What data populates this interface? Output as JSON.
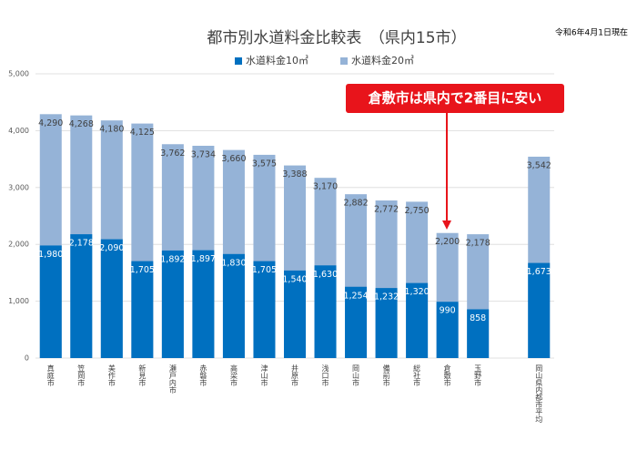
{
  "chart_data": {
    "type": "overlap-bar",
    "title": "都市別水道料金比較表　（県内15市）",
    "subtitle": "令和6年4月1日現在",
    "annotation": "倉敷市は県内で2番目に安い",
    "categories": [
      "真庭市",
      "笠岡市",
      "美作市",
      "新見市",
      "瀬戸内市",
      "赤磐市",
      "高梁市",
      "津山市",
      "井原市",
      "浅口市",
      "岡山市",
      "備前市",
      "総社市",
      "倉敷市",
      "玉野市",
      null,
      "岡山県内都市平均"
    ],
    "series": [
      {
        "name": "水道料金10㎥",
        "color": "#0070c0",
        "values": [
          1980,
          2178,
          2090,
          1705,
          1892,
          1897,
          1830,
          1705,
          1540,
          1630,
          1254,
          1232,
          1320,
          990,
          858,
          null,
          1673
        ],
        "value_labels": [
          "1,980",
          "2,178",
          "2,090",
          "1,705",
          "1,892",
          "1,897",
          "1,830",
          "1,705",
          "1,540",
          "1,630",
          "1,254",
          "1,232",
          "1,320",
          "990",
          "858",
          null,
          "1,673"
        ]
      },
      {
        "name": "水道料金20㎥",
        "color": "#95b3d7",
        "values": [
          4290,
          4268,
          4180,
          4125,
          3762,
          3734,
          3660,
          3575,
          3388,
          3170,
          2882,
          2772,
          2750,
          2200,
          2178,
          null,
          3542
        ],
        "value_labels": [
          "4,290",
          "4,268",
          "4,180",
          "4,125",
          "3,762",
          "3,734",
          "3,660",
          "3,575",
          "3,388",
          "3,170",
          "2,882",
          "2,772",
          "2,750",
          "2,200",
          "2,178",
          null,
          "3,542"
        ]
      }
    ],
    "ylim": [
      0,
      5000
    ],
    "yticks": [
      0,
      {
        "value": 1000,
        "label": "1,000"
      },
      {
        "value": 2000,
        "label": "2,000"
      },
      {
        "value": 3000,
        "label": "3,000"
      },
      {
        "value": 4000,
        "label": "4,000"
      },
      {
        "value": 5000,
        "label": "5,000"
      }
    ],
    "grid": true,
    "legend": "top"
  }
}
